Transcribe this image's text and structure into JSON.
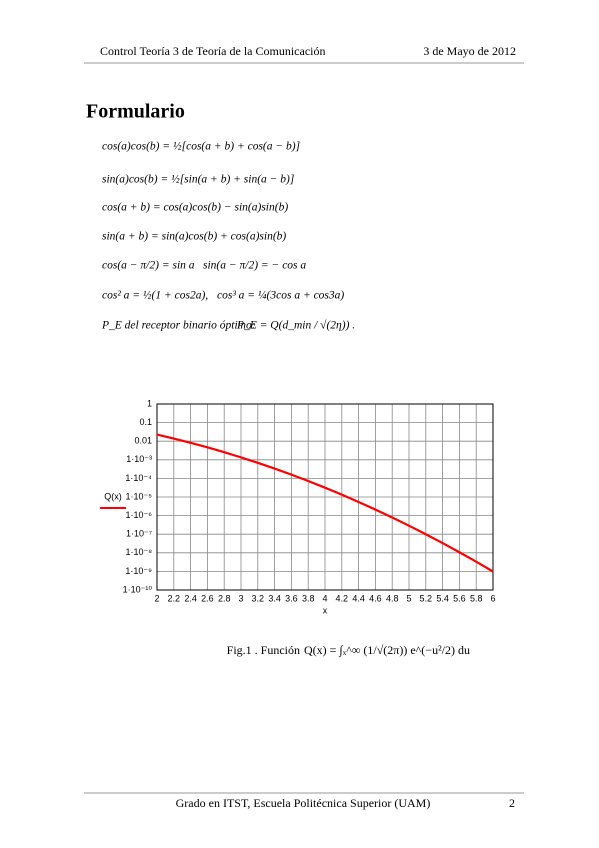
{
  "header": {
    "left": "Control Teoría 3 de Teoría de la Comunicación",
    "right": "3 de Mayo de 2012"
  },
  "title": "Formulario",
  "formulas": [
    [
      "cos(a)cos(b) = ½[cos(a + b) + cos(a − b)]"
    ],
    [
      "sin(a)cos(b) = ½[sin(a + b) + sin(a − b)]"
    ],
    [
      "cos(a + b) = cos(a)cos(b) − sin(a)sin(b)"
    ],
    [
      "sin(a + b) = sin(a)cos(b) + cos(a)sin(b)"
    ],
    [
      "cos(a − π/2) = sin a",
      "sin(a − π/2) = − cos a"
    ],
    [
      "cos² a = ½(1 + cos2a),",
      "cos³ a = ¼(3cos a + cos3a)"
    ],
    [
      "P_E del receptor binario óptimo:",
      "P_E = Q(d_min / √(2η)) ."
    ]
  ],
  "chart_data": {
    "type": "line",
    "x_label": "x",
    "x": [
      2,
      2.2,
      2.4,
      2.6,
      2.8,
      3,
      3.2,
      3.4,
      3.6,
      3.8,
      4,
      4.2,
      4.4,
      4.6,
      4.8,
      5,
      5.2,
      5.4,
      5.6,
      5.8,
      6
    ],
    "series": [
      {
        "name": "Q(x)",
        "color": "#ff0000",
        "values": [
          0.02275,
          0.0139,
          0.008198,
          0.004661,
          0.002555,
          0.00135,
          0.0006871,
          0.0003369,
          0.0001591,
          7.235e-05,
          3.167e-05,
          1.335e-05,
          5.413e-06,
          2.112e-06,
          7.933e-07,
          2.867e-07,
          9.964e-08,
          3.332e-08,
          1.072e-08,
          3.316e-09,
          9.866e-10
        ]
      }
    ],
    "xlim": [
      2,
      6
    ],
    "xticks": [
      2,
      2.2,
      2.4,
      2.6,
      2.8,
      3,
      3.2,
      3.4,
      3.6,
      3.8,
      4,
      4.2,
      4.4,
      4.6,
      4.8,
      5,
      5.2,
      5.4,
      5.6,
      5.8,
      6
    ],
    "ylim": [
      1e-10,
      1
    ],
    "yticks": [
      1,
      0.1,
      0.01,
      {
        "value": 0.001,
        "label": "1·10⁻³"
      },
      {
        "value": 0.0001,
        "label": "1·10⁻⁴"
      },
      {
        "value": 1e-05,
        "label": "1·10⁻⁵"
      },
      {
        "value": 1e-06,
        "label": "1·10⁻⁶"
      },
      {
        "value": 1e-07,
        "label": "1·10⁻⁷"
      },
      {
        "value": 1e-08,
        "label": "1·10⁻⁸"
      },
      {
        "value": 1e-09,
        "label": "1·10⁻⁹"
      },
      {
        "value": 1e-10,
        "label": "1·10⁻¹⁰"
      }
    ],
    "log_y": true,
    "grid": true
  },
  "caption": {
    "label": "Fig.1 . Función",
    "formula": "Q(x) = ∫ₓ^∞ (1/√(2π)) e^(−u²/2) du"
  },
  "footer": {
    "text": "Grado en ITST, Escuela Politécnica Superior (UAM)",
    "page": "2"
  }
}
